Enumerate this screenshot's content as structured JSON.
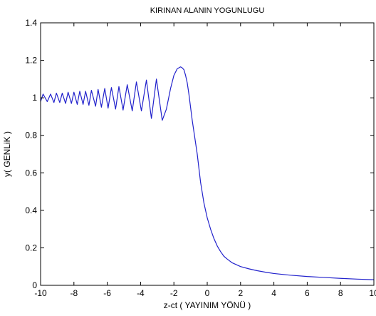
{
  "colors": {
    "background": "#ffffff",
    "axes": "#000000",
    "series": "#2222cc"
  },
  "chart_data": {
    "type": "line",
    "title": "KIRINAN ALANIN YOGUNLUGU",
    "xlabel": "z-ct ( YAYINIM YÖNÜ )",
    "ylabel": "y( GENLiK )",
    "xlim": [
      -10,
      10
    ],
    "ylim": [
      0,
      1.4
    ],
    "xticks": [
      -10,
      -8,
      -6,
      -4,
      -2,
      0,
      2,
      4,
      6,
      8,
      10
    ],
    "xtick_labels": [
      "-10",
      "-8",
      "-6",
      "-4",
      "-2",
      "0",
      "2",
      "4",
      "6",
      "8",
      "10"
    ],
    "yticks": [
      0,
      0.2,
      0.4,
      0.6,
      0.8,
      1,
      1.2,
      1.4
    ],
    "ytick_labels": [
      "0",
      "0.2",
      "0.4",
      "0.6",
      "0.8",
      "1",
      "1.2",
      "1.4"
    ],
    "grid": false,
    "legend": "none",
    "series": [
      {
        "x": [
          -10,
          -9.85,
          -9.6,
          -9.4,
          -9.2,
          -9.05,
          -8.85,
          -8.7,
          -8.5,
          -8.35,
          -8.15,
          -8,
          -7.8,
          -7.65,
          -7.45,
          -7.3,
          -7.1,
          -6.95,
          -6.7,
          -6.55,
          -6.35,
          -6.15,
          -5.95,
          -5.75,
          -5.5,
          -5.3,
          -5.05,
          -4.8,
          -4.5,
          -4.25,
          -3.95,
          -3.65,
          -3.35,
          -3.05,
          -2.7,
          -2.45,
          -2.2,
          -2,
          -1.8,
          -1.6,
          -1.5,
          -1.4,
          -1.3,
          -1.2,
          -1.1,
          -1,
          -0.9,
          -0.8,
          -0.6,
          -0.4,
          -0.2,
          0,
          0.2,
          0.4,
          0.6,
          0.8,
          1,
          1.2,
          1.5,
          2,
          2.5,
          3,
          3.5,
          4,
          5,
          6,
          7,
          8,
          9,
          10
        ],
        "y": [
          0.98,
          1.02,
          0.98,
          1.02,
          0.975,
          1.025,
          0.975,
          1.025,
          0.97,
          1.03,
          0.97,
          1.03,
          0.965,
          1.035,
          0.965,
          1.035,
          0.96,
          1.04,
          0.955,
          1.045,
          0.95,
          1.05,
          0.945,
          1.055,
          0.94,
          1.06,
          0.935,
          1.07,
          0.93,
          1.085,
          0.93,
          1.095,
          0.89,
          1.1,
          0.88,
          0.94,
          1.05,
          1.12,
          1.155,
          1.165,
          1.16,
          1.15,
          1.12,
          1.08,
          1.02,
          0.95,
          0.88,
          0.82,
          0.7,
          0.55,
          0.44,
          0.36,
          0.3,
          0.25,
          0.21,
          0.18,
          0.155,
          0.14,
          0.12,
          0.1,
          0.088,
          0.078,
          0.07,
          0.063,
          0.054,
          0.047,
          0.042,
          0.037,
          0.033,
          0.03
        ]
      }
    ]
  }
}
